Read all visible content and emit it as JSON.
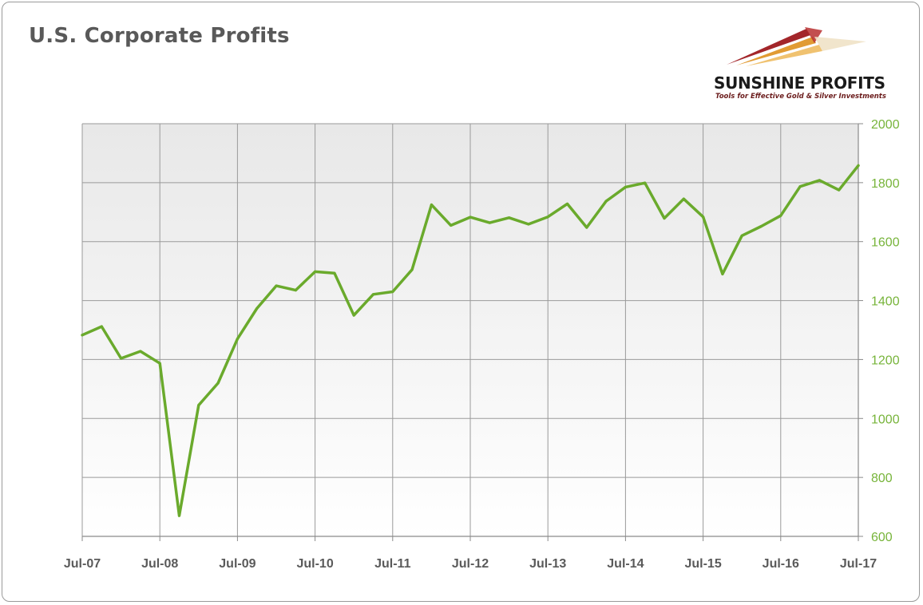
{
  "chart_data": {
    "type": "line",
    "title": "U.S. Corporate Profits",
    "xlabel": "",
    "ylabel": "",
    "ylim": [
      600,
      2000
    ],
    "y_ticks": [
      600,
      800,
      1000,
      1200,
      1400,
      1600,
      1800,
      2000
    ],
    "y_axis_side": "right",
    "x_ticks": [
      "Jul-07",
      "Jul-08",
      "Jul-09",
      "Jul-10",
      "Jul-11",
      "Jul-12",
      "Jul-13",
      "Jul-14",
      "Jul-15",
      "Jul-16",
      "Jul-17"
    ],
    "grid": true,
    "legend": "none",
    "series": [
      {
        "color": "#6aaa2c",
        "x": [
          "Jul-07",
          "Oct-07",
          "Jan-08",
          "Apr-08",
          "Jul-08",
          "Oct-08",
          "Jan-09",
          "Apr-09",
          "Jul-09",
          "Oct-09",
          "Jan-10",
          "Apr-10",
          "Jul-10",
          "Oct-10",
          "Jan-11",
          "Apr-11",
          "Jul-11",
          "Oct-11",
          "Jan-12",
          "Apr-12",
          "Jul-12",
          "Oct-12",
          "Jan-13",
          "Apr-13",
          "Jul-13",
          "Oct-13",
          "Jan-14",
          "Apr-14",
          "Jul-14",
          "Oct-14",
          "Jan-15",
          "Apr-15",
          "Jul-15",
          "Oct-15",
          "Jan-16",
          "Apr-16",
          "Jul-16",
          "Oct-16",
          "Jan-17",
          "Apr-17",
          "Jul-17"
        ],
        "values": [
          1283,
          1312,
          1204,
          1228,
          1187,
          670,
          1045,
          1120,
          1270,
          1373,
          1450,
          1435,
          1498,
          1493,
          1350,
          1421,
          1430,
          1505,
          1725,
          1655,
          1683,
          1664,
          1681,
          1659,
          1684,
          1728,
          1648,
          1737,
          1785,
          1799,
          1679,
          1745,
          1684,
          1490,
          1620,
          1652,
          1688,
          1787,
          1808,
          1775,
          1858
        ]
      }
    ]
  },
  "logo": {
    "name": "SUNSHINE PROFITS",
    "tagline": "Tools for Effective Gold & Silver Investments"
  },
  "colors": {
    "line": "#6aaa2c",
    "y_tick_text": "#77b43a",
    "grid": "#9a9a9a",
    "plot_bg_top": "#e8e8e8",
    "plot_bg_bottom": "#ffffff"
  }
}
